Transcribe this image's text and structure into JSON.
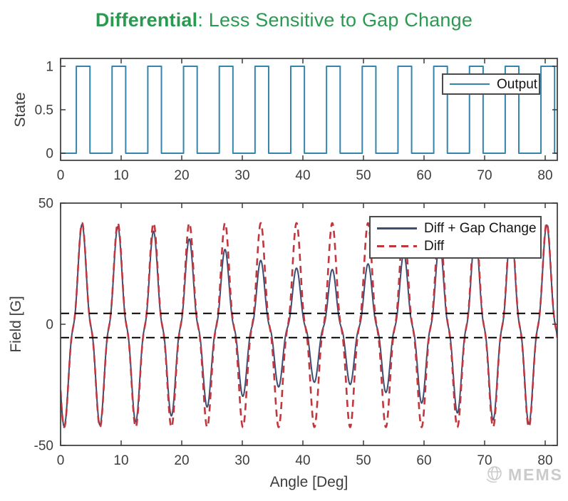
{
  "title": {
    "emphasis": "Differential",
    "rest": ": Less Sensitive to Gap Change",
    "color": "#2a9a51"
  },
  "watermark": {
    "label": "MEMS",
    "icon": "globe-icon",
    "color": "#c6c6c6"
  },
  "axes_style": {
    "spine_color": "#3a3a3a",
    "tick_label_color": "#3d3d3d",
    "axis_label_color": "#3d3d3d",
    "background": "#ffffff"
  },
  "chart_data": [
    {
      "type": "line",
      "position": "top",
      "title": "",
      "xlabel": "",
      "ylabel": "State",
      "xlim": [
        0,
        82
      ],
      "ylim": [
        -0.082,
        1.09
      ],
      "xticks": [
        0,
        10,
        20,
        30,
        40,
        50,
        60,
        70,
        80
      ],
      "yticks": [
        0,
        0.5,
        1
      ],
      "grid": false,
      "legend": {
        "position": "northeast",
        "entries": [
          "Output"
        ],
        "colors": [
          "#3484ae"
        ],
        "styles": [
          "solid"
        ]
      },
      "series": [
        {
          "name": "Output",
          "waveform": "square",
          "color": "#3484ae",
          "line_width": 2,
          "period_deg": 5.9,
          "rise_offset_deg": 2.6,
          "high_width_deg": 2.25,
          "low_level": 0,
          "high_level": 1,
          "initial_state": 0,
          "cycles_visible": 14
        }
      ]
    },
    {
      "type": "line",
      "position": "bottom",
      "title": "",
      "xlabel": "Angle [Deg]",
      "ylabel": "Field [G]",
      "xlim": [
        0,
        82
      ],
      "ylim": [
        -50,
        50
      ],
      "xticks": [
        0,
        10,
        20,
        30,
        40,
        50,
        60,
        70,
        80
      ],
      "yticks": [
        -50,
        0,
        50
      ],
      "grid": false,
      "legend": {
        "position": "northeast",
        "entries": [
          "Diff + Gap Change",
          "Diff"
        ],
        "colors": [
          "#3d4e72",
          "#c2363e"
        ],
        "styles": [
          "solid",
          "dashed"
        ]
      },
      "threshold_lines": {
        "values": [
          4.5,
          -5.5
        ],
        "color": "#000000",
        "style": "dashed"
      },
      "series": [
        {
          "name": "Diff + Gap Change",
          "waveform": "spike-train",
          "style": "solid",
          "color": "#3d4e72",
          "line_width": 2,
          "period_deg": 5.9,
          "positive_peak_offset_deg": 3.55,
          "spike_base_width_deg": 3.5,
          "spike_sharpness": 3,
          "amplitude_g": 43,
          "baseline_g": -1.2,
          "negative_spike_scale": 0.96,
          "gap_change_dip": {
            "center_deg": 43,
            "sigma_deg": 21,
            "depth": 0.45
          },
          "approx_peak_g_at_edges": 41.5,
          "approx_min_peak_g_mid": 22.5
        },
        {
          "name": "Diff",
          "waveform": "spike-train",
          "style": "dashed",
          "color": "#c2363e",
          "line_width": 2.6,
          "dash": [
            10,
            7
          ],
          "period_deg": 5.9,
          "positive_peak_offset_deg": 3.55,
          "spike_base_width_deg": 3.5,
          "spike_sharpness": 3,
          "amplitude_g": 43,
          "baseline_g": -1.2,
          "negative_spike_scale": 0.96,
          "approx_peak_g": 41.8
        }
      ]
    }
  ]
}
